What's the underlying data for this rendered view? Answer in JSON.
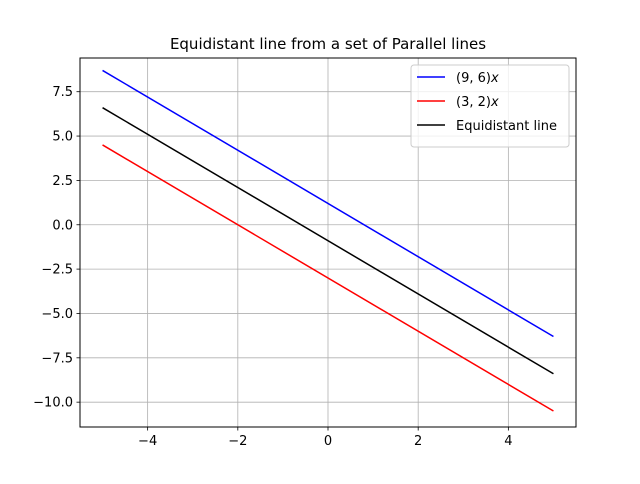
{
  "chart_data": {
    "type": "line",
    "title": "Equidistant line from a set of Parallel lines",
    "xlabel": "",
    "ylabel": "",
    "xlim": [
      -5.5,
      5.5
    ],
    "ylim": [
      -11.4,
      9.4
    ],
    "grid": true,
    "legend_position": "top-right",
    "x_ticks": [
      -4,
      -2,
      0,
      2,
      4
    ],
    "x_tick_labels": [
      "−4",
      "−2",
      "0",
      "2",
      "4"
    ],
    "y_ticks": [
      -10,
      -7.5,
      -5,
      -2.5,
      0,
      2.5,
      5,
      7.5
    ],
    "y_tick_labels": [
      "−10.0",
      "−7.5",
      "−5.0",
      "−2.5",
      "0.0",
      "2.5",
      "5.0",
      "7.5"
    ],
    "series": [
      {
        "name": "(9, 6)x",
        "name_parts": [
          "(9, 6)",
          "x"
        ],
        "color": "#0000ff",
        "x": [
          -5,
          5
        ],
        "y": [
          8.7,
          -6.3
        ]
      },
      {
        "name": "(3, 2)x",
        "name_parts": [
          "(3, 2)",
          "x"
        ],
        "color": "#ff0000",
        "x": [
          -5,
          5
        ],
        "y": [
          4.5,
          -10.5
        ]
      },
      {
        "name": "Equidistant line",
        "name_parts": [
          "Equidistant line",
          ""
        ],
        "color": "#000000",
        "x": [
          -5,
          5
        ],
        "y": [
          6.6,
          -8.4
        ]
      }
    ]
  }
}
